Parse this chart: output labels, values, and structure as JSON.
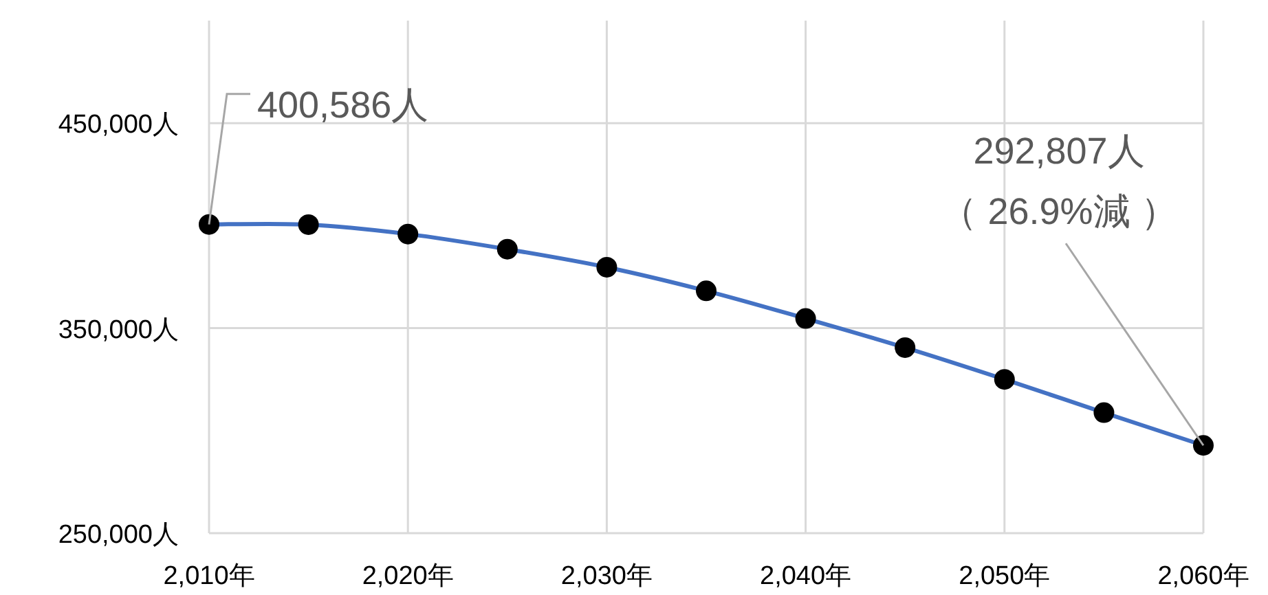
{
  "chart_data": {
    "type": "line",
    "x": [
      2010,
      2015,
      2020,
      2025,
      2030,
      2035,
      2040,
      2045,
      2050,
      2055,
      2060
    ],
    "series": [
      {
        "color": "#4472c4",
        "values": [
          400586,
          400500,
          395900,
          388500,
          379700,
          368200,
          354700,
          340500,
          325000,
          308800,
          292807
        ]
      }
    ],
    "xlim": [
      2010,
      2060
    ],
    "xticks": [
      {
        "value": 2010,
        "label": "2,010年"
      },
      {
        "value": 2020,
        "label": "2,020年"
      },
      {
        "value": 2030,
        "label": "2,030年"
      },
      {
        "value": 2040,
        "label": "2,040年"
      },
      {
        "value": 2050,
        "label": "2,050年"
      },
      {
        "value": 2060,
        "label": "2,060年"
      }
    ],
    "ylim": [
      250000,
      500000
    ],
    "yticks": [
      {
        "value": 250000,
        "label": "250,000人"
      },
      {
        "value": 350000,
        "label": "350,000人"
      },
      {
        "value": 450000,
        "label": "450,000人"
      }
    ],
    "grid": true,
    "marker": "circle",
    "annotations": [
      {
        "text": "400,586人",
        "x": 2010,
        "y": 400586
      },
      "292,807人",
      {
        "text": "（ 26.9%減 ）",
        "x": 2060,
        "y": 292807
      }
    ]
  }
}
